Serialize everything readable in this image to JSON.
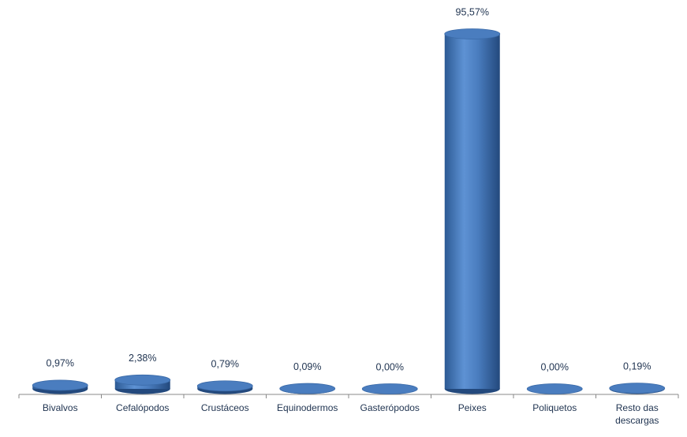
{
  "chart_data": {
    "type": "bar",
    "categories": [
      "Bivalvos",
      "Cefalópodos",
      "Crustáceos",
      "Equinodermos",
      "Gasterópodos",
      "Peixes",
      "Poliquetos",
      "Resto das descargas"
    ],
    "values": [
      0.97,
      2.38,
      0.79,
      0.09,
      0.0,
      95.57,
      0.0,
      0.19
    ],
    "value_labels": [
      "0,97%",
      "2,38%",
      "0,79%",
      "0,09%",
      "0,00%",
      "95,57%",
      "0,00%",
      "0,19%"
    ],
    "color": "#4a7dbf"
  }
}
